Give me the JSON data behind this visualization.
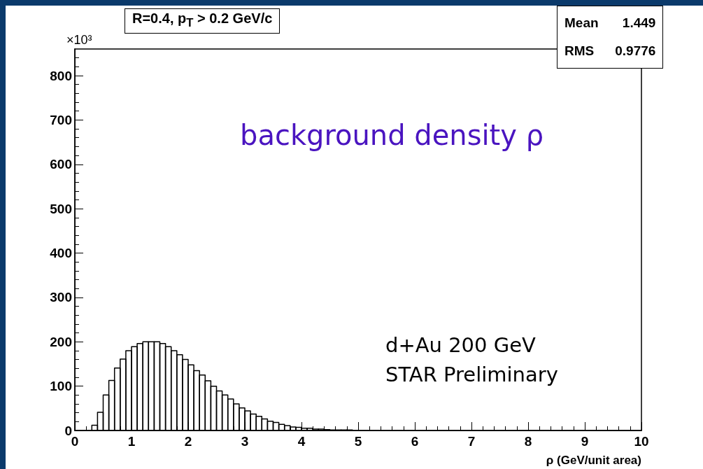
{
  "chart_data": {
    "type": "histogram",
    "title": "R=0.4, p$_{T}$ > 0.2 GeV/c",
    "xlabel": "ρ (GeV/unit area)",
    "ylabel": "×10³",
    "annotations": [
      "Mean 1.449",
      "RMS 0.9776",
      "background density ρ",
      "d+Au 200 GeV",
      "STAR Preliminary"
    ],
    "bins": [
      0,
      0.1,
      0.2,
      0.3,
      0.4,
      0.5,
      0.6,
      0.7,
      0.8,
      0.9,
      1,
      1.1,
      1.2,
      1.3,
      1.4,
      1.5,
      1.6,
      1.7,
      1.8,
      1.9,
      2,
      2.1,
      2.2,
      2.3,
      2.4,
      2.5,
      2.6,
      2.7,
      2.8,
      2.9,
      3,
      3.1,
      3.2,
      3.3,
      3.4,
      3.5,
      3.6,
      3.7,
      3.8,
      3.9,
      4,
      4.1,
      4.2,
      4.3,
      4.4,
      4.5,
      4.6,
      4.7,
      4.8,
      4.9,
      5,
      5.1,
      5.2,
      5.3,
      5.4,
      5.5,
      5.6,
      5.7,
      5.8,
      5.9,
      6,
      6.1,
      6.2,
      6.3,
      6.4,
      6.5,
      6.6,
      6.7,
      6.8,
      6.9,
      7,
      7.1,
      7.2,
      7.3,
      7.4,
      7.5,
      7.6,
      7.7,
      7.8,
      7.9,
      8,
      8.1,
      8.2,
      8.3,
      8.4,
      8.5,
      8.6,
      8.7,
      8.8,
      8.9,
      9,
      9.1,
      9.2,
      9.3,
      9.4,
      9.5,
      9.6,
      9.7,
      9.8,
      9.9,
      10
    ],
    "values": [
      0,
      0,
      0,
      12,
      41,
      80,
      113,
      141,
      161,
      180,
      189,
      196,
      200,
      200,
      200,
      196,
      189,
      180,
      171,
      160,
      148,
      135,
      125,
      112,
      100,
      89,
      80,
      71,
      60,
      51,
      44,
      37,
      32,
      26,
      21,
      18,
      14,
      11,
      8,
      7,
      5,
      5,
      3,
      3,
      2,
      1,
      1,
      1,
      1,
      0,
      0,
      0,
      0,
      0,
      0,
      0,
      0,
      0,
      0,
      0,
      0,
      0,
      0,
      0,
      0,
      0,
      0,
      0,
      0,
      0,
      0,
      0,
      0,
      0,
      0,
      0,
      0,
      0,
      0,
      0,
      0,
      0,
      0,
      0,
      0,
      0,
      0,
      0,
      0,
      0,
      0,
      0,
      0,
      0,
      0,
      0,
      0,
      0,
      0,
      0
    ],
    "color": "#000000",
    "xlim": [
      0,
      10
    ],
    "xticks": [
      0,
      1,
      2,
      3,
      4,
      5,
      6,
      7,
      8,
      9,
      10
    ],
    "ylim": [
      0,
      860
    ],
    "yticks": [
      0,
      100,
      200,
      300,
      400,
      500,
      600,
      700,
      800
    ]
  }
}
